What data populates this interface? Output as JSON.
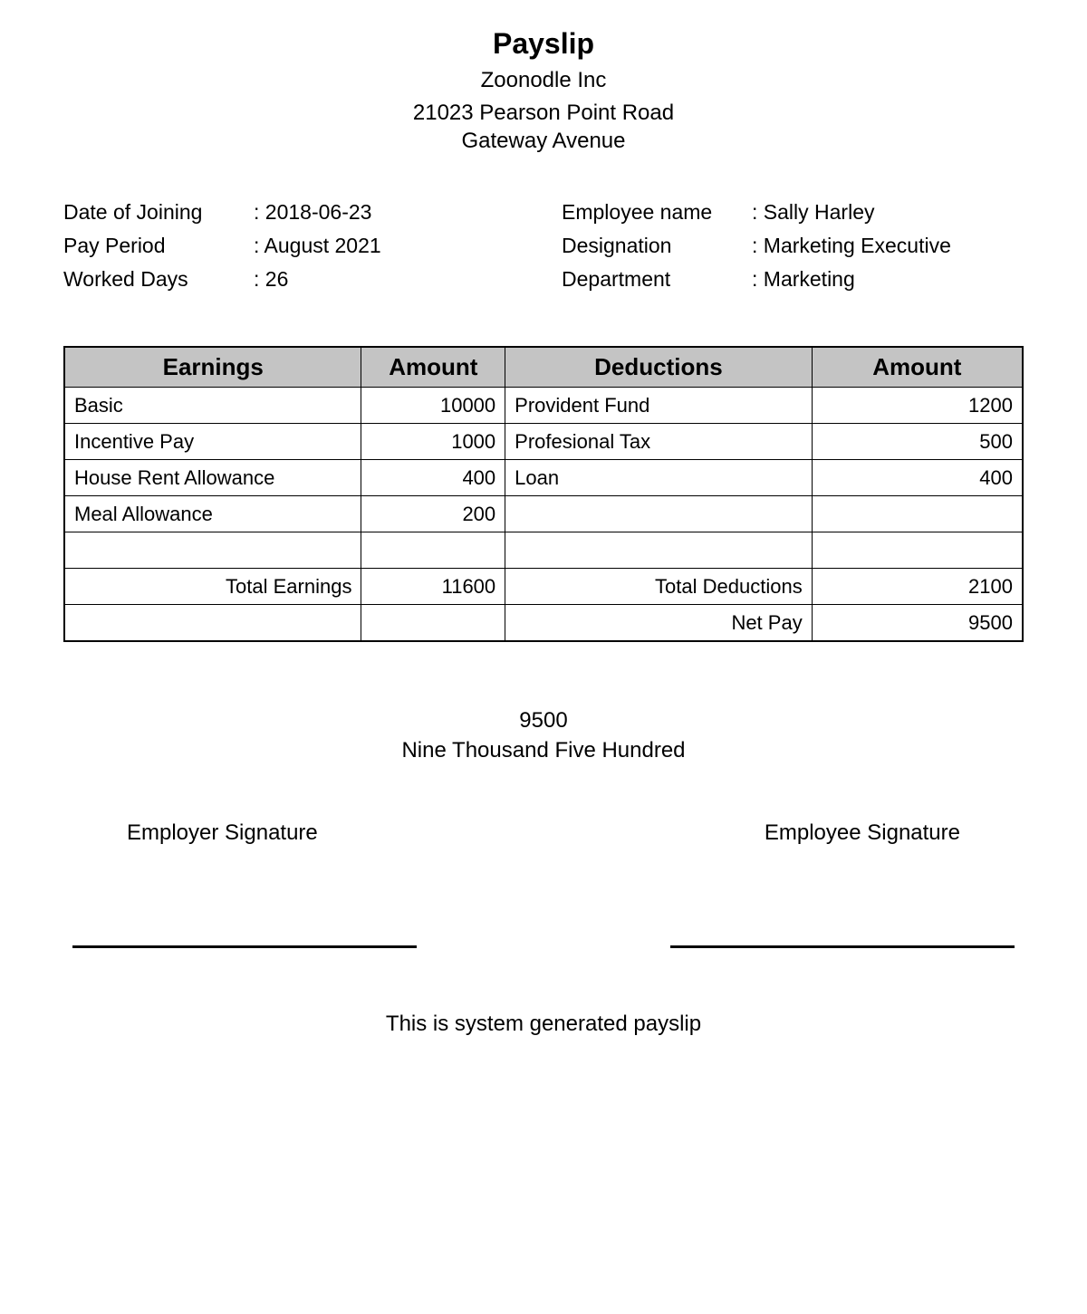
{
  "header": {
    "title": "Payslip",
    "company": "Zoonodle Inc",
    "address_line1": "21023 Pearson Point Road",
    "address_line2": "Gateway Avenue"
  },
  "info": {
    "left": [
      {
        "label": "Date of Joining",
        "value": "2018-06-23"
      },
      {
        "label": "Pay Period",
        "value": "August 2021"
      },
      {
        "label": "Worked Days",
        "value": "26"
      }
    ],
    "right": [
      {
        "label": "Employee name",
        "value": "Sally Harley"
      },
      {
        "label": "Designation",
        "value": "Marketing Executive"
      },
      {
        "label": "Department",
        "value": "Marketing"
      }
    ]
  },
  "table": {
    "headers": {
      "earnings": "Earnings",
      "earn_amount": "Amount",
      "deductions": "Deductions",
      "ded_amount": "Amount"
    },
    "rows": [
      {
        "earn_label": "Basic",
        "earn_amt": "10000",
        "ded_label": "Provident Fund",
        "ded_amt": "1200"
      },
      {
        "earn_label": "Incentive Pay",
        "earn_amt": "1000",
        "ded_label": "Profesional Tax",
        "ded_amt": "500"
      },
      {
        "earn_label": "House Rent Allowance",
        "earn_amt": "400",
        "ded_label": "Loan",
        "ded_amt": "400"
      },
      {
        "earn_label": "Meal Allowance",
        "earn_amt": "200",
        "ded_label": "",
        "ded_amt": ""
      },
      {
        "earn_label": "",
        "earn_amt": "",
        "ded_label": "",
        "ded_amt": ""
      }
    ],
    "totals": {
      "total_earnings_label": "Total Earnings",
      "total_earnings": "11600",
      "total_deductions_label": "Total Deductions",
      "total_deductions": "2100",
      "net_pay_label": "Net Pay",
      "net_pay": "9500"
    },
    "style": {
      "header_bg": "#c4c4c4",
      "border_color": "#000000",
      "outer_border_width": 2,
      "inner_border_width": 1,
      "header_fontsize": 26,
      "body_fontsize": 22,
      "col_widths_pct": [
        31,
        15,
        32,
        22
      ]
    }
  },
  "netpay": {
    "amount": "9500",
    "words": "Nine Thousand Five Hundred"
  },
  "signatures": {
    "employer": "Employer Signature",
    "employee": "Employee Signature"
  },
  "footer": "This is system generated payslip",
  "colors": {
    "background": "#ffffff",
    "text": "#000000"
  },
  "typography": {
    "title_fontsize": 32,
    "subtitle_fontsize": 24,
    "body_fontsize": 23,
    "font_family": "Arial"
  }
}
